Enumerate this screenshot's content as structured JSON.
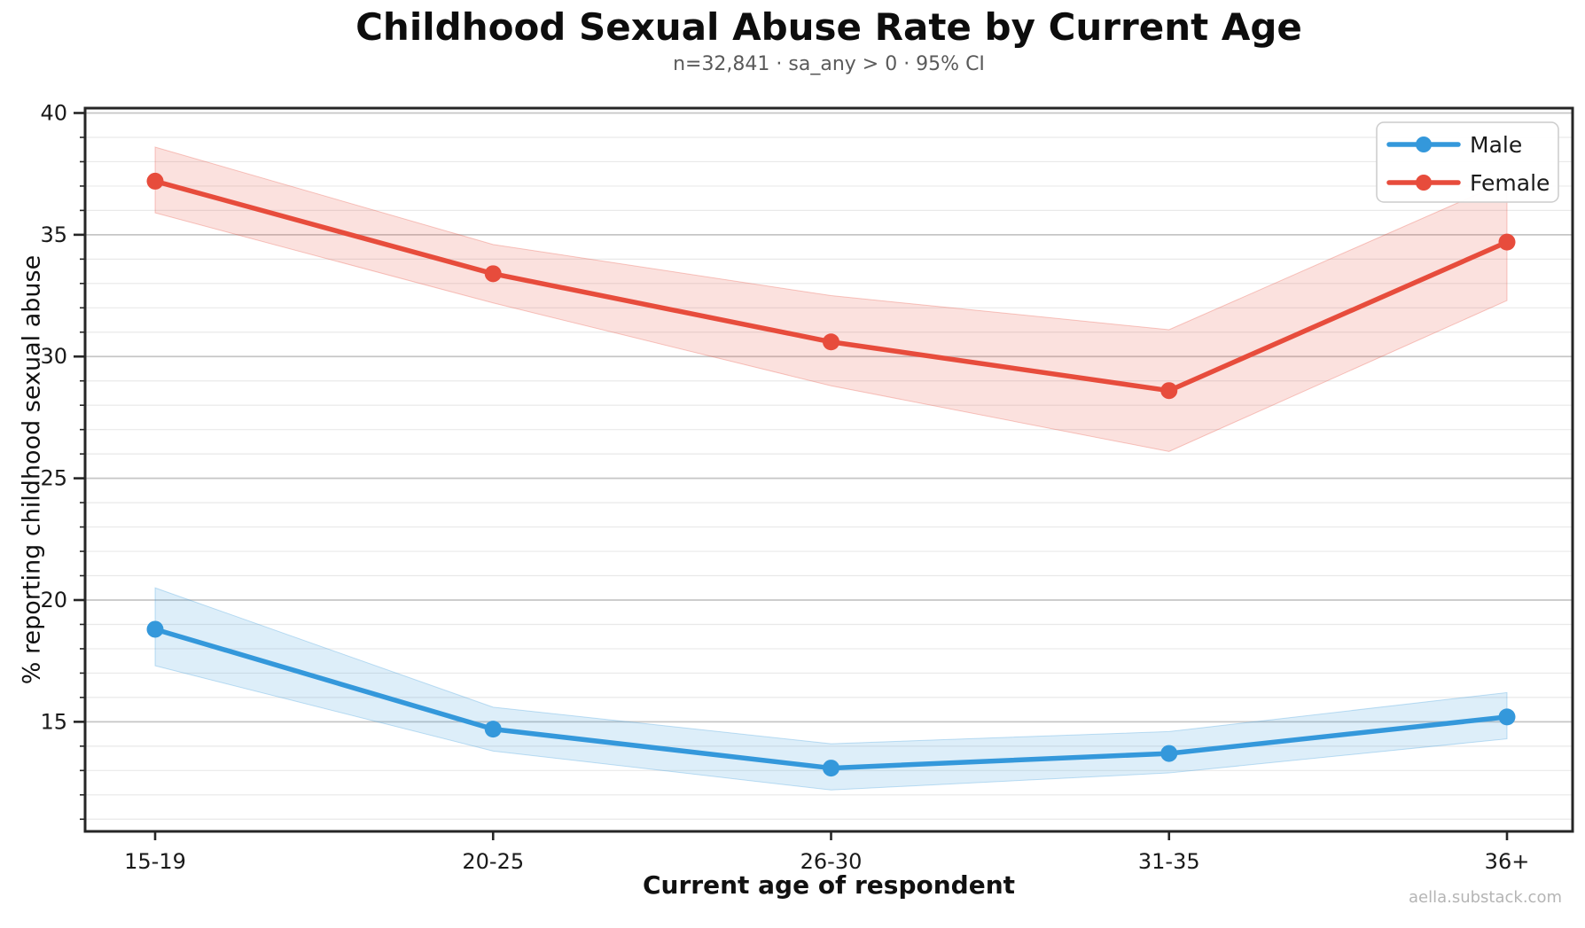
{
  "figure": {
    "title": "Childhood Sexual Abuse Rate by Current Age",
    "subtitle": "n=32,841 · sa_any > 0 · 95% CI",
    "watermark": "aella.substack.com"
  },
  "chart_data": {
    "type": "line",
    "title": "Childhood Sexual Abuse Rate by Current Age",
    "subtitle": "n=32,841 · sa_any > 0 · 95% CI",
    "xlabel": "Current age of respondent",
    "ylabel": "% reporting childhood sexual abuse",
    "categories": [
      "15-19",
      "20-25",
      "26-30",
      "31-35",
      "36+"
    ],
    "series": [
      {
        "name": "Male",
        "color": "#3498db",
        "values": [
          18.8,
          14.7,
          13.1,
          13.7,
          15.2
        ],
        "ci_lower": [
          17.3,
          13.8,
          12.2,
          12.9,
          14.3
        ],
        "ci_upper": [
          20.5,
          15.6,
          14.1,
          14.6,
          16.2
        ]
      },
      {
        "name": "Female",
        "color": "#e74c3c",
        "values": [
          37.2,
          33.4,
          30.6,
          28.6,
          34.7
        ],
        "ci_lower": [
          35.9,
          32.2,
          28.8,
          26.1,
          32.3
        ],
        "ci_upper": [
          38.6,
          34.6,
          32.5,
          31.1,
          37.2
        ]
      }
    ],
    "ylim": [
      10.5,
      40.2
    ],
    "yticks_major": [
      15,
      20,
      25,
      30,
      35,
      40
    ],
    "minor_grid_step": 1,
    "grid": "horizontal-major-and-minor",
    "legend_position": "top-right",
    "band_meaning": "95% CI",
    "colors": {
      "major_grid": "#c6c6c6",
      "minor_grid": "#e9e9e9",
      "spine": "#262626",
      "tick_label": "#1a1a1a",
      "legend_border": "#cccccc"
    }
  }
}
